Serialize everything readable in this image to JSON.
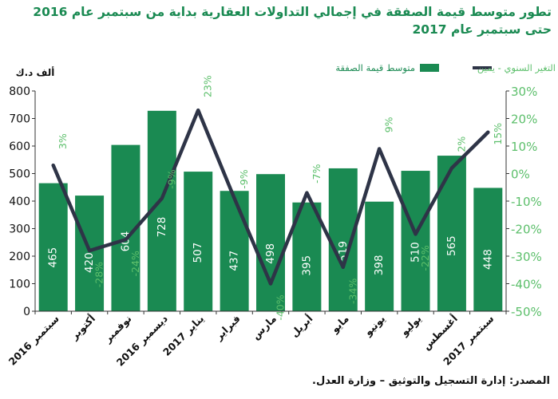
{
  "title": "تطور متوسط قيمة الصفقة في إجمالي التداولات العقارية بداية من سبتمبر عام  2016 حتى سبتمبر عام  2017",
  "source": "المصدر: إدارة التسجيل والتوثيق – وزارة العدل.",
  "chart_data": {
    "type": "bar",
    "categories": [
      "سبتمبر 2016",
      "أكتوبر",
      "نوفمبر",
      "ديسمبر 2016",
      "يناير 2017",
      "فبراير",
      "مارس",
      "أبريل",
      "مايو",
      "يونيو",
      "يوليو",
      "أغسطس",
      "سبتمبر 2017"
    ],
    "y_left_unit": "ألف د.ك",
    "y_left_range": [
      0,
      800
    ],
    "y_left_ticks": [
      0,
      100,
      200,
      300,
      400,
      500,
      600,
      700,
      800
    ],
    "y_right_range": [
      -50,
      30
    ],
    "y_right_ticks": [
      "-50%",
      "-40%",
      "-30%",
      "-20%",
      "-10%",
      "0%",
      "10%",
      "20%",
      "30%"
    ],
    "grid": false,
    "legend_position": "top",
    "series": [
      {
        "name": "متوسط قيمة الصفقة",
        "type": "bar",
        "axis": "left",
        "color": "#1a8a52",
        "values": [
          465,
          420,
          604,
          728,
          507,
          437,
          498,
          395,
          519,
          398,
          510,
          565,
          448
        ],
        "labels": [
          "465",
          "420",
          "604",
          "728",
          "507",
          "437",
          "498",
          "395",
          "519",
          "398",
          "510",
          "565",
          "448"
        ]
      },
      {
        "name": "التغير السنوي - يمين",
        "type": "line",
        "axis": "right",
        "color": "#2e3447",
        "label_color": "#5cbf6b",
        "values": [
          3,
          -28,
          -24,
          -9,
          23,
          -9,
          -40,
          -7,
          -34,
          9,
          -22,
          2,
          15
        ],
        "labels": [
          "3%",
          "-28%",
          "-24%",
          "-9%",
          "23%",
          "-9%",
          "-40%",
          "-7%",
          "-34%",
          "9%",
          "-22%",
          "2%",
          "15%"
        ]
      }
    ]
  }
}
